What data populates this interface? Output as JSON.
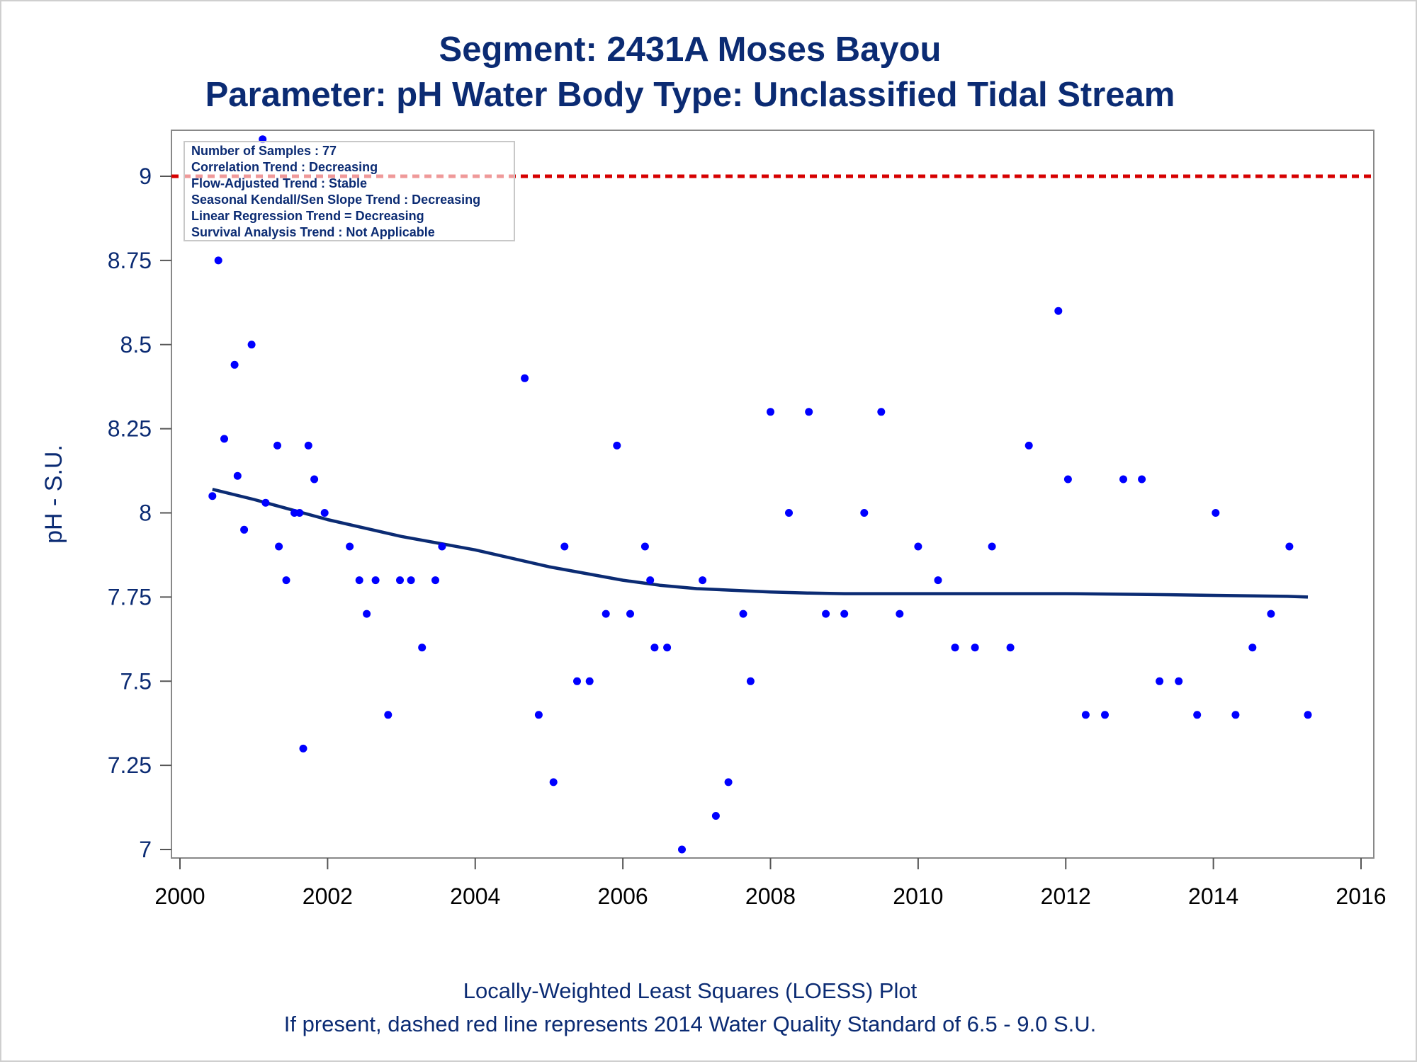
{
  "chart_data": {
    "type": "scatter",
    "title": "Segment: 2431A  Moses Bayou",
    "subtitle": "Parameter: pH   Water Body Type: Unclassified Tidal Stream",
    "ylabel": "pH - S.U.",
    "xlabel": "",
    "xlim": [
      2000,
      2016
    ],
    "ylim": [
      7,
      9.25
    ],
    "xticks": [
      "2000",
      "2002",
      "2004",
      "2006",
      "2008",
      "2010",
      "2012",
      "2014",
      "2016"
    ],
    "yticks": [
      "7",
      "7.25",
      "7.5",
      "7.75",
      "8",
      "8.25",
      "8.5",
      "8.75",
      "9"
    ],
    "standard_line": {
      "value": 9.0,
      "style": "dashed",
      "color": "#d60000"
    },
    "stats_box": [
      "Number of Samples : 77",
      "Correlation Trend : Decreasing",
      "Flow-Adjusted Trend : Stable",
      "Seasonal Kendall/Sen Slope Trend : Decreasing",
      "Linear Regression Trend = Decreasing",
      "Survival Analysis Trend : Not Applicable"
    ],
    "footnotes": [
      "Locally-Weighted Least Squares (LOESS) Plot",
      "If present, dashed red line represents 2014 Water Quality Standard of 6.5 - 9.0 S.U."
    ],
    "points": [
      [
        2000.44,
        8.05
      ],
      [
        2000.52,
        8.75
      ],
      [
        2000.6,
        8.22
      ],
      [
        2000.74,
        8.44
      ],
      [
        2000.78,
        8.11
      ],
      [
        2000.87,
        7.95
      ],
      [
        2000.97,
        8.5
      ],
      [
        2001.12,
        9.11
      ],
      [
        2001.16,
        8.03
      ],
      [
        2001.32,
        8.2
      ],
      [
        2001.34,
        7.9
      ],
      [
        2001.44,
        7.8
      ],
      [
        2001.55,
        8.0
      ],
      [
        2001.62,
        8.0
      ],
      [
        2001.67,
        7.3
      ],
      [
        2001.74,
        8.2
      ],
      [
        2001.82,
        8.1
      ],
      [
        2001.96,
        8.0
      ],
      [
        2002.3,
        7.9
      ],
      [
        2002.43,
        7.8
      ],
      [
        2002.53,
        7.7
      ],
      [
        2002.65,
        7.8
      ],
      [
        2002.82,
        7.4
      ],
      [
        2002.98,
        7.8
      ],
      [
        2003.13,
        7.8
      ],
      [
        2003.28,
        7.6
      ],
      [
        2003.46,
        7.8
      ],
      [
        2003.55,
        7.9
      ],
      [
        2004.67,
        8.4
      ],
      [
        2004.86,
        7.4
      ],
      [
        2005.06,
        7.2
      ],
      [
        2005.21,
        7.9
      ],
      [
        2005.38,
        7.5
      ],
      [
        2005.55,
        7.5
      ],
      [
        2005.77,
        7.7
      ],
      [
        2005.92,
        8.2
      ],
      [
        2006.1,
        7.7
      ],
      [
        2006.3,
        7.9
      ],
      [
        2006.37,
        7.8
      ],
      [
        2006.43,
        7.6
      ],
      [
        2006.6,
        7.6
      ],
      [
        2006.8,
        7.0
      ],
      [
        2007.08,
        7.8
      ],
      [
        2007.26,
        7.1
      ],
      [
        2007.43,
        7.2
      ],
      [
        2007.63,
        7.7
      ],
      [
        2007.73,
        7.5
      ],
      [
        2008.0,
        8.3
      ],
      [
        2008.25,
        8.0
      ],
      [
        2008.52,
        8.3
      ],
      [
        2008.75,
        7.7
      ],
      [
        2009.0,
        7.7
      ],
      [
        2009.27,
        8.0
      ],
      [
        2009.5,
        8.3
      ],
      [
        2009.75,
        7.7
      ],
      [
        2010.0,
        7.9
      ],
      [
        2010.27,
        7.8
      ],
      [
        2010.5,
        7.6
      ],
      [
        2010.77,
        7.6
      ],
      [
        2011.0,
        7.9
      ],
      [
        2011.25,
        7.6
      ],
      [
        2011.5,
        8.2
      ],
      [
        2011.9,
        8.6
      ],
      [
        2012.03,
        8.1
      ],
      [
        2012.27,
        7.4
      ],
      [
        2012.53,
        7.4
      ],
      [
        2012.78,
        8.1
      ],
      [
        2013.03,
        8.1
      ],
      [
        2013.27,
        7.5
      ],
      [
        2013.53,
        7.5
      ],
      [
        2013.78,
        7.4
      ],
      [
        2014.03,
        8.0
      ],
      [
        2014.3,
        7.4
      ],
      [
        2014.53,
        7.6
      ],
      [
        2014.78,
        7.7
      ],
      [
        2015.03,
        7.9
      ],
      [
        2015.28,
        7.4
      ]
    ],
    "loess": [
      [
        2000.44,
        8.07
      ],
      [
        2001.0,
        8.04
      ],
      [
        2002.0,
        7.98
      ],
      [
        2003.0,
        7.93
      ],
      [
        2004.0,
        7.89
      ],
      [
        2005.0,
        7.84
      ],
      [
        2006.0,
        7.8
      ],
      [
        2006.5,
        7.785
      ],
      [
        2007.0,
        7.775
      ],
      [
        2007.5,
        7.77
      ],
      [
        2008.0,
        7.765
      ],
      [
        2008.5,
        7.762
      ],
      [
        2009.0,
        7.76
      ],
      [
        2010.0,
        7.76
      ],
      [
        2011.0,
        7.76
      ],
      [
        2012.0,
        7.76
      ],
      [
        2013.0,
        7.758
      ],
      [
        2014.0,
        7.755
      ],
      [
        2015.0,
        7.752
      ],
      [
        2015.28,
        7.75
      ]
    ],
    "point_color": "#0000ff",
    "loess_color": "#0b2b73",
    "grid": false
  }
}
